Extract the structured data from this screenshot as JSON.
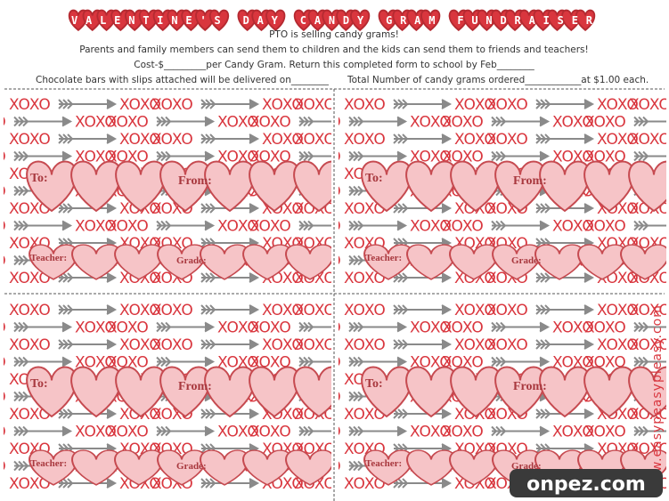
{
  "header": {
    "title": "VALENTINE'S DAY CANDY GRAM FUNDRAISER",
    "lines": [
      "PTO is selling candy grams!",
      "Parents and family members can send them to children and the kids can send them to friends and teachers!",
      "Cost-$_________per Candy Gram. Return this completed form to school by Feb________"
    ]
  },
  "form": {
    "left": "Chocolate bars with slips attached will be delivered on________",
    "right": "Total Number of candy grams ordered____________at $1.00 each."
  },
  "card": {
    "xoxo": "XOXO",
    "to": "To:",
    "from": "From:",
    "teacher": "Teacher:",
    "grade": "Grade:"
  },
  "side_credit": "www.easypeasypleasy.com",
  "watermark": "onpez.com"
}
